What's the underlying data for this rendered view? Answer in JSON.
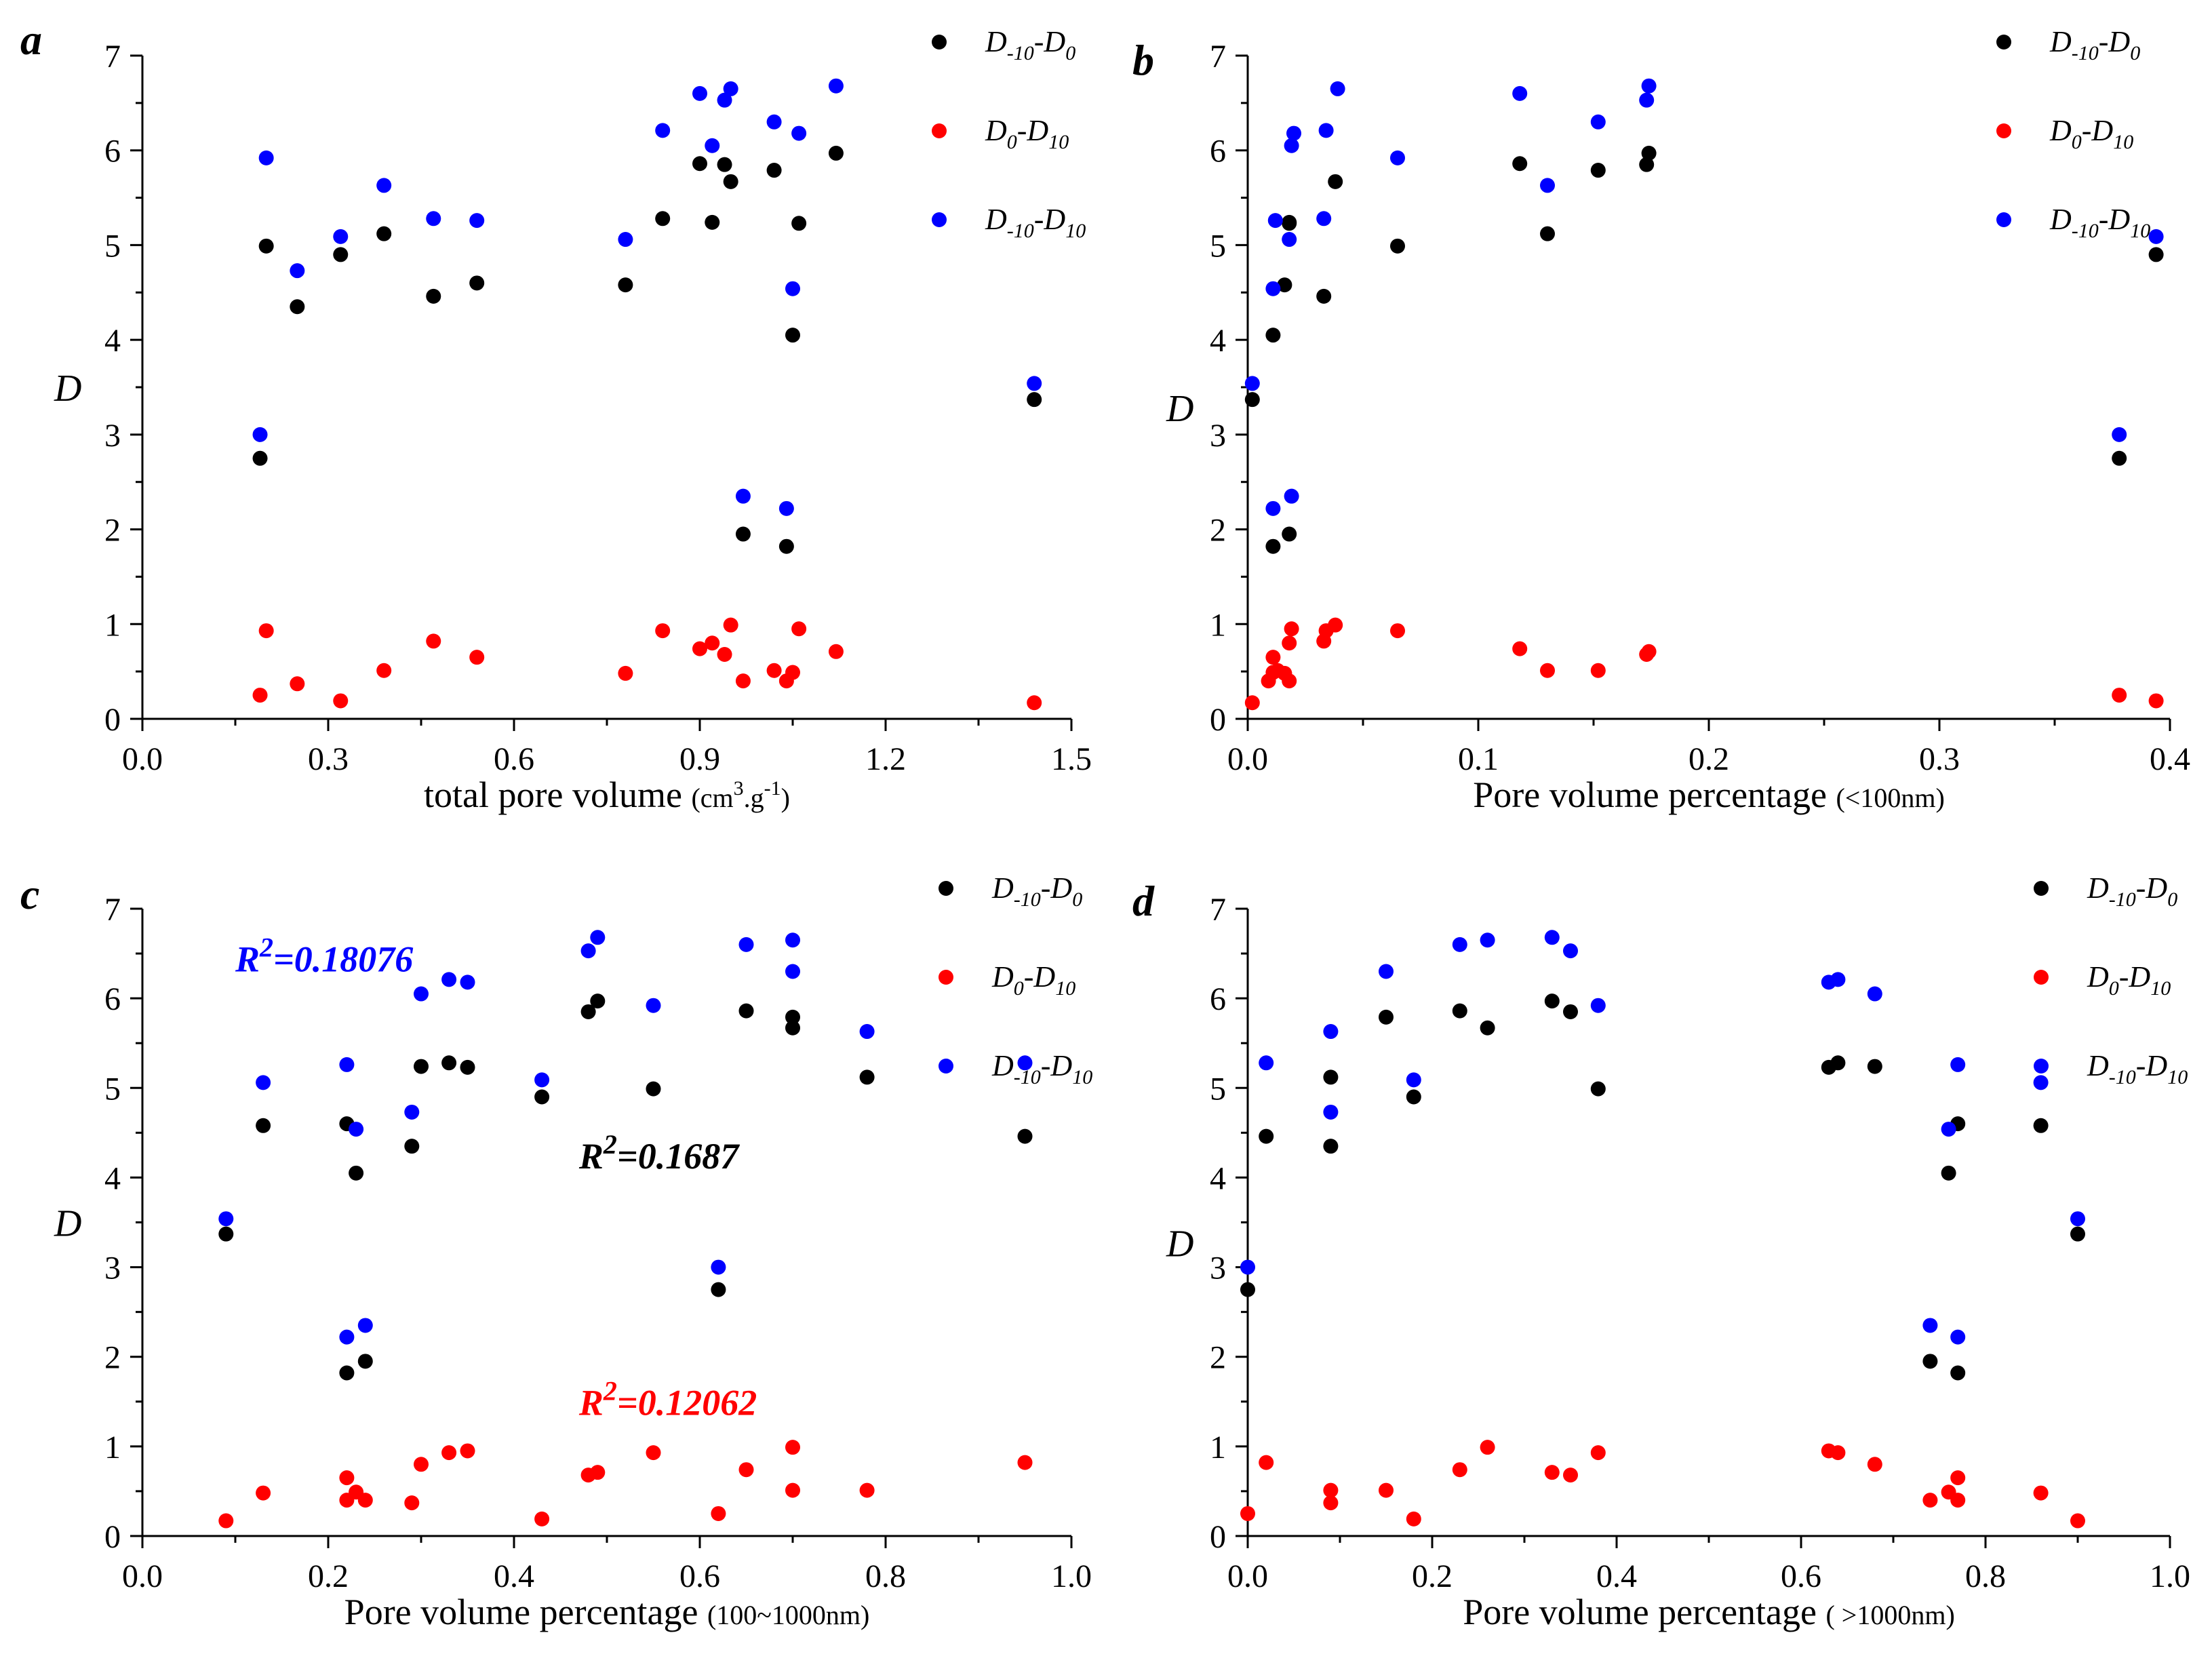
{
  "colors": {
    "black": "#000000",
    "red": "#ff0000",
    "blue": "#0000ff"
  },
  "legend": [
    {
      "prefix": "D",
      "sub1": "-10",
      "mid": "-D",
      "sub2": "0",
      "color": "black"
    },
    {
      "prefix": "D",
      "sub1": "0",
      "mid": "-D",
      "sub2": "10",
      "color": "red"
    },
    {
      "prefix": "D",
      "sub1": "-10",
      "mid": "-D",
      "sub2": "10",
      "color": "blue"
    }
  ],
  "chart_data": [
    {
      "type": "scatter",
      "panel": "a",
      "ylabel": "D",
      "xlabel": "total pore volume",
      "xunit": "(cm3.g-1)",
      "xlim": [
        0,
        1.5
      ],
      "ylim": [
        0,
        7
      ],
      "xticks": [
        "0.0",
        "0.3",
        "0.6",
        "0.9",
        "1.2",
        "1.5"
      ],
      "yticks": [
        "0",
        "1",
        "2",
        "3",
        "4",
        "5",
        "6",
        "7"
      ],
      "series": [
        {
          "name": "D-10-D0",
          "color": "black",
          "x": [
            0.19,
            0.2,
            0.25,
            0.32,
            0.39,
            0.47,
            0.54,
            0.78,
            0.84,
            0.9,
            0.92,
            0.94,
            0.95,
            0.97,
            1.02,
            1.04,
            1.05,
            1.06,
            1.12,
            1.44
          ],
          "y": [
            2.75,
            4.99,
            4.35,
            4.9,
            5.12,
            4.46,
            4.6,
            4.58,
            5.28,
            5.86,
            5.24,
            5.85,
            5.67,
            1.95,
            5.79,
            1.82,
            4.05,
            5.23,
            5.97,
            3.37
          ]
        },
        {
          "name": "D0-D10",
          "color": "red",
          "x": [
            0.19,
            0.2,
            0.25,
            0.32,
            0.39,
            0.47,
            0.54,
            0.78,
            0.84,
            0.9,
            0.92,
            0.94,
            0.95,
            0.97,
            1.02,
            1.04,
            1.05,
            1.06,
            1.12,
            1.44
          ],
          "y": [
            0.25,
            0.93,
            0.37,
            0.19,
            0.51,
            0.82,
            0.65,
            0.48,
            0.93,
            0.74,
            0.8,
            0.68,
            0.99,
            0.4,
            0.51,
            0.4,
            0.49,
            0.95,
            0.71,
            0.17
          ]
        },
        {
          "name": "D-10-D10",
          "color": "blue",
          "x": [
            0.19,
            0.2,
            0.25,
            0.32,
            0.39,
            0.47,
            0.54,
            0.78,
            0.84,
            0.9,
            0.92,
            0.94,
            0.95,
            0.97,
            1.02,
            1.04,
            1.05,
            1.06,
            1.12,
            1.44
          ],
          "y": [
            3.0,
            5.92,
            4.73,
            5.09,
            5.63,
            5.28,
            5.26,
            5.06,
            6.21,
            6.6,
            6.05,
            6.53,
            6.65,
            2.35,
            6.3,
            2.22,
            4.54,
            6.18,
            6.68,
            3.54
          ]
        }
      ]
    },
    {
      "type": "scatter",
      "panel": "b",
      "ylabel": "D",
      "xlabel": "Pore volume percentage",
      "xunit": "(<100nm)",
      "xlim": [
        0,
        0.4
      ],
      "ylim": [
        0,
        7
      ],
      "xticks": [
        "0.0",
        "0.1",
        "0.2",
        "0.3",
        "0.4"
      ],
      "yticks": [
        "0",
        "1",
        "2",
        "3",
        "4",
        "5",
        "6",
        "7"
      ],
      "series": [
        {
          "name": "D-10-D0",
          "color": "black",
          "x": [
            0.002,
            0.011,
            0.011,
            0.016,
            0.018,
            0.018,
            0.018,
            0.033,
            0.038,
            0.065,
            0.118,
            0.13,
            0.152,
            0.173,
            0.174,
            0.378,
            0.394
          ],
          "y": [
            3.37,
            1.82,
            4.05,
            4.58,
            1.95,
            5.23,
            5.24,
            4.46,
            5.67,
            4.99,
            5.86,
            5.12,
            5.79,
            5.85,
            5.97,
            2.75,
            4.9
          ]
        },
        {
          "name": "D0-D10",
          "color": "red",
          "x": [
            0.002,
            0.009,
            0.011,
            0.011,
            0.013,
            0.016,
            0.018,
            0.018,
            0.019,
            0.033,
            0.034,
            0.038,
            0.065,
            0.118,
            0.13,
            0.152,
            0.173,
            0.174,
            0.378,
            0.394
          ],
          "y": [
            0.17,
            0.4,
            0.65,
            0.49,
            0.51,
            0.48,
            0.4,
            0.8,
            0.95,
            0.82,
            0.93,
            0.99,
            0.93,
            0.74,
            0.51,
            0.51,
            0.68,
            0.71,
            0.25,
            0.19
          ]
        },
        {
          "name": "D-10-D10",
          "color": "blue",
          "x": [
            0.002,
            0.011,
            0.011,
            0.012,
            0.018,
            0.019,
            0.019,
            0.02,
            0.033,
            0.034,
            0.039,
            0.065,
            0.118,
            0.13,
            0.152,
            0.173,
            0.174,
            0.378,
            0.394
          ],
          "y": [
            3.54,
            2.22,
            4.54,
            5.26,
            5.06,
            2.35,
            6.05,
            6.18,
            5.28,
            6.21,
            6.65,
            5.92,
            6.6,
            5.63,
            6.3,
            6.53,
            6.68,
            3.0,
            5.09
          ]
        }
      ]
    },
    {
      "type": "scatter",
      "panel": "c",
      "ylabel": "D",
      "xlabel": "Pore volume percentage",
      "xunit": "(100~1000nm)",
      "xlim": [
        0,
        1.0
      ],
      "ylim": [
        0,
        7
      ],
      "xticks": [
        "0.0",
        "0.2",
        "0.4",
        "0.6",
        "0.8",
        "1.0"
      ],
      "yticks": [
        "0",
        "1",
        "2",
        "3",
        "4",
        "5",
        "6",
        "7"
      ],
      "annotations": [
        {
          "text": "=0.18076",
          "color": "blue",
          "x": 0.1,
          "y": 6.3
        },
        {
          "text": "=0.1687",
          "color": "black",
          "x": 0.47,
          "y": 4.1
        },
        {
          "text": "=0.12062",
          "color": "red",
          "x": 0.47,
          "y": 1.35
        }
      ],
      "series": [
        {
          "name": "D-10-D0",
          "color": "black",
          "x": [
            0.09,
            0.13,
            0.22,
            0.22,
            0.23,
            0.24,
            0.29,
            0.3,
            0.33,
            0.35,
            0.43,
            0.48,
            0.49,
            0.55,
            0.62,
            0.65,
            0.7,
            0.7,
            0.78,
            0.95
          ],
          "y": [
            3.37,
            4.58,
            1.82,
            4.6,
            4.05,
            1.95,
            4.35,
            5.24,
            5.28,
            5.23,
            4.9,
            5.85,
            5.97,
            4.99,
            2.75,
            5.86,
            5.79,
            5.67,
            5.12,
            4.46
          ]
        },
        {
          "name": "D0-D10",
          "color": "red",
          "x": [
            0.09,
            0.13,
            0.22,
            0.22,
            0.23,
            0.24,
            0.29,
            0.3,
            0.33,
            0.35,
            0.43,
            0.48,
            0.49,
            0.55,
            0.62,
            0.65,
            0.7,
            0.7,
            0.78,
            0.95
          ],
          "y": [
            0.17,
            0.48,
            0.65,
            0.4,
            0.49,
            0.4,
            0.37,
            0.8,
            0.93,
            0.95,
            0.19,
            0.68,
            0.71,
            0.93,
            0.25,
            0.74,
            0.99,
            0.51,
            0.51,
            0.82
          ]
        },
        {
          "name": "D-10-D10",
          "color": "blue",
          "x": [
            0.09,
            0.13,
            0.22,
            0.22,
            0.23,
            0.24,
            0.29,
            0.3,
            0.33,
            0.35,
            0.43,
            0.48,
            0.49,
            0.55,
            0.62,
            0.65,
            0.7,
            0.7,
            0.78,
            0.95
          ],
          "y": [
            3.54,
            5.06,
            2.22,
            5.26,
            4.54,
            2.35,
            4.73,
            6.05,
            6.21,
            6.18,
            5.09,
            6.53,
            6.68,
            5.92,
            3.0,
            6.6,
            6.65,
            6.3,
            5.63,
            5.28
          ]
        }
      ]
    },
    {
      "type": "scatter",
      "panel": "d",
      "ylabel": "D",
      "xlabel": "Pore volume percentage",
      "xunit": "( >1000nm)",
      "xlim": [
        0,
        1.0
      ],
      "ylim": [
        0,
        7
      ],
      "xticks": [
        "0.0",
        "0.2",
        "0.4",
        "0.6",
        "0.8",
        "1.0"
      ],
      "yticks": [
        "0",
        "1",
        "2",
        "3",
        "4",
        "5",
        "6",
        "7"
      ],
      "series": [
        {
          "name": "D-10-D0",
          "color": "black",
          "x": [
            0.0,
            0.02,
            0.09,
            0.09,
            0.15,
            0.18,
            0.23,
            0.26,
            0.33,
            0.35,
            0.38,
            0.63,
            0.64,
            0.68,
            0.74,
            0.76,
            0.77,
            0.77,
            0.86,
            0.9
          ],
          "y": [
            2.75,
            4.46,
            4.35,
            5.12,
            5.79,
            4.9,
            5.86,
            5.67,
            5.97,
            5.85,
            4.99,
            5.23,
            5.28,
            5.24,
            1.95,
            4.05,
            1.82,
            4.6,
            4.58,
            3.37
          ]
        },
        {
          "name": "D0-D10",
          "color": "red",
          "x": [
            0.0,
            0.02,
            0.09,
            0.09,
            0.15,
            0.18,
            0.23,
            0.26,
            0.33,
            0.35,
            0.38,
            0.63,
            0.64,
            0.68,
            0.74,
            0.76,
            0.77,
            0.77,
            0.86,
            0.9
          ],
          "y": [
            0.25,
            0.82,
            0.37,
            0.51,
            0.51,
            0.19,
            0.74,
            0.99,
            0.71,
            0.68,
            0.93,
            0.95,
            0.93,
            0.8,
            0.4,
            0.49,
            0.4,
            0.65,
            0.48,
            0.17
          ]
        },
        {
          "name": "D-10-D10",
          "color": "blue",
          "x": [
            0.0,
            0.02,
            0.09,
            0.09,
            0.15,
            0.18,
            0.23,
            0.26,
            0.33,
            0.35,
            0.38,
            0.63,
            0.64,
            0.68,
            0.74,
            0.76,
            0.77,
            0.77,
            0.86,
            0.9
          ],
          "y": [
            3.0,
            5.28,
            4.73,
            5.63,
            6.3,
            5.09,
            6.6,
            6.65,
            6.68,
            6.53,
            5.92,
            6.18,
            6.21,
            6.05,
            2.35,
            4.54,
            2.22,
            5.26,
            5.06,
            3.54
          ]
        }
      ]
    }
  ]
}
